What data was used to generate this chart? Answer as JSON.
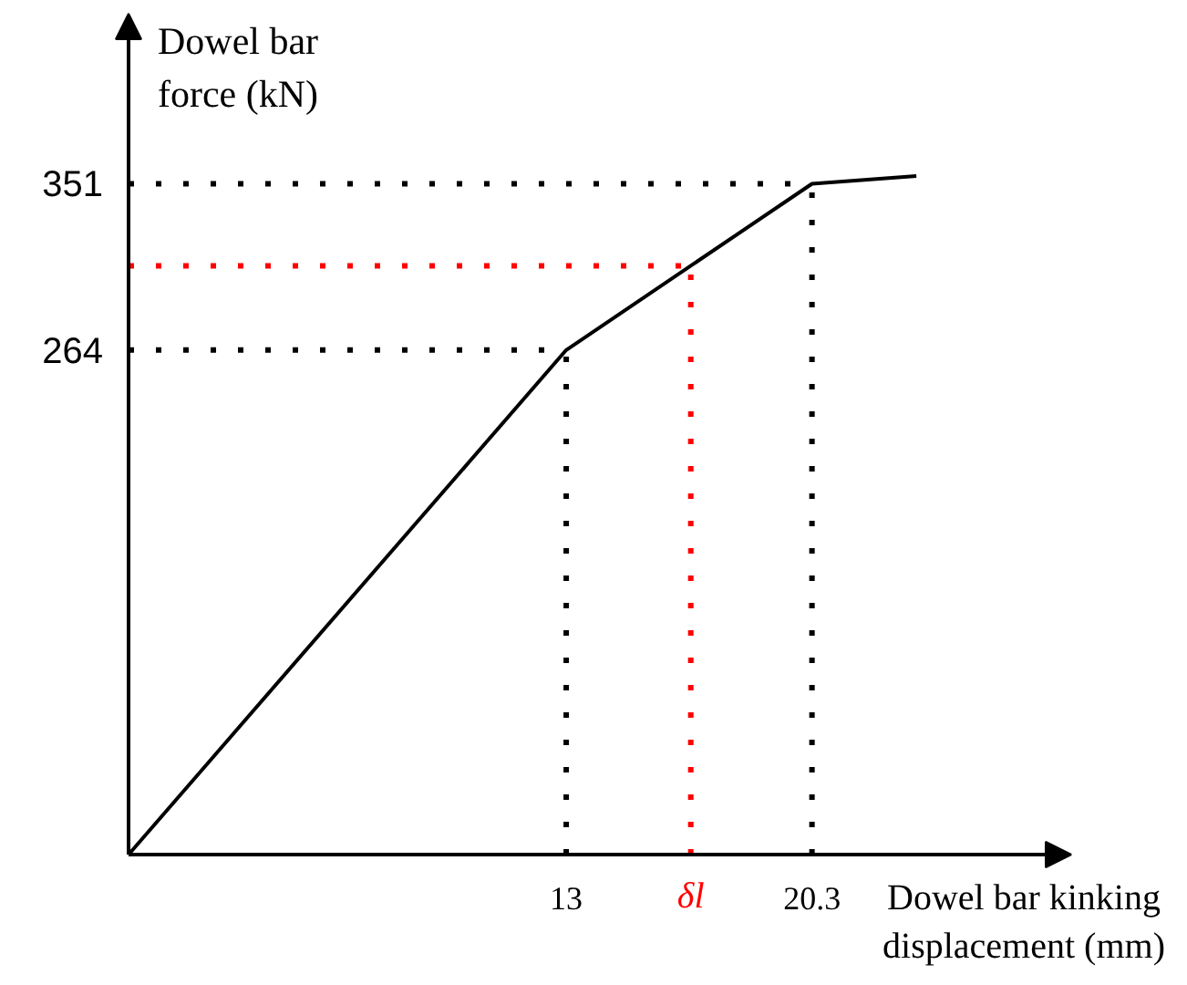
{
  "chart_data": {
    "type": "line",
    "xlabel": "Dowel bar kinking displacement (mm)",
    "ylabel": "Dowel bar force (kN)",
    "x": [
      0,
      13,
      20.3,
      23.4
    ],
    "series": [
      {
        "color": "#000000",
        "values": [
          0,
          264,
          351,
          355
        ]
      }
    ],
    "xlim": [
      0,
      28
    ],
    "ylim": [
      0,
      440
    ],
    "xticks": [
      13,
      20.3
    ],
    "yticks": [
      264,
      351
    ],
    "ref_lines": [
      {
        "axis": "y",
        "value": 351,
        "color": "#000000",
        "line_style": "dotted"
      },
      {
        "axis": "y",
        "value": 308,
        "color": "#ff0000",
        "line_style": "dotted"
      },
      {
        "axis": "y",
        "value": 264,
        "color": "#000000",
        "line_style": "dotted"
      },
      {
        "axis": "x",
        "value": 13,
        "color": "#000000",
        "line_style": "dotted"
      },
      {
        "axis": "x",
        "value": 16.7,
        "label": "δl",
        "color": "#ff0000",
        "line_style": "dotted"
      },
      {
        "axis": "x",
        "value": 20.3,
        "color": "#000000",
        "line_style": "dotted"
      }
    ],
    "grid": false,
    "line_style": "solid"
  }
}
